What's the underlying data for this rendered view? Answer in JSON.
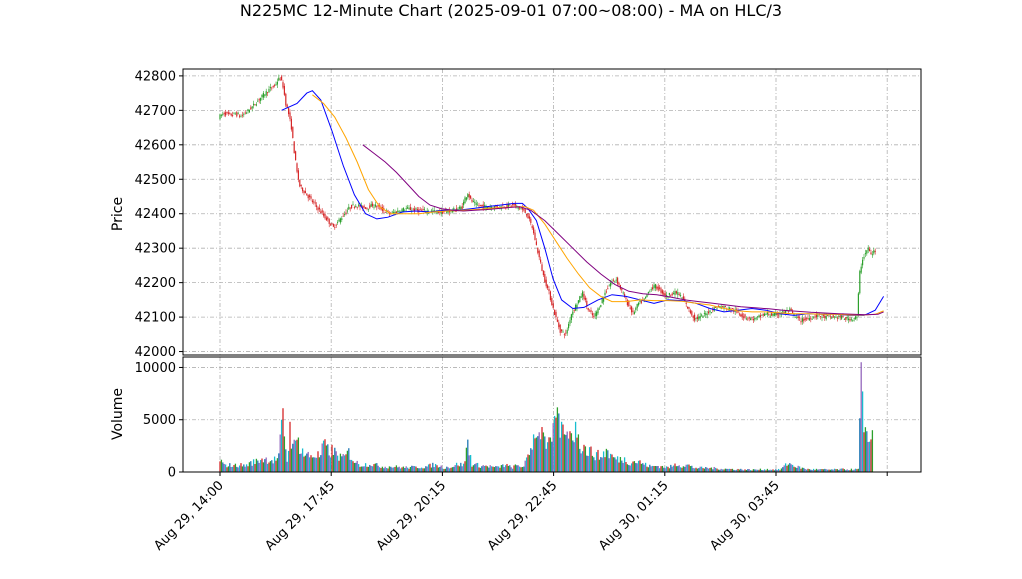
{
  "chart_data": {
    "type": "candlestick",
    "title": "N225MC 12-Minute Chart (2025-09-01 07:00~08:00) - MA on HLC/3",
    "price_panel": {
      "ylabel": "Price",
      "ylim": [
        41990,
        42820
      ],
      "yticks": [
        42000,
        42100,
        42200,
        42300,
        42400,
        42500,
        42600,
        42700,
        42800
      ],
      "grid": true
    },
    "volume_panel": {
      "ylabel": "Volume",
      "ylim": [
        0,
        11000
      ],
      "yticks": [
        0,
        5000,
        10000
      ],
      "grid": true
    },
    "x_axis": {
      "tick_labels": [
        "Aug 29, 14:00",
        "Aug 29, 17:45",
        "Aug 29, 20:15",
        "Aug 29, 22:45",
        "Aug 30, 01:15",
        "Aug 30, 03:45"
      ]
    },
    "up_color": "#2ca02c",
    "down_color": "#d62728",
    "volume_colors": [
      "#d62728",
      "#2ca02c",
      "#1f77b4",
      "#9467bd",
      "#17becf"
    ],
    "ma_lines": [
      {
        "color": "#0000ff",
        "points": [
          [
            44,
            42700
          ],
          [
            55,
            42720
          ],
          [
            62,
            42750
          ],
          [
            66,
            42757
          ],
          [
            72,
            42730
          ],
          [
            80,
            42640
          ],
          [
            88,
            42540
          ],
          [
            96,
            42455
          ],
          [
            104,
            42400
          ],
          [
            112,
            42385
          ],
          [
            120,
            42390
          ],
          [
            130,
            42405
          ],
          [
            140,
            42408
          ],
          [
            150,
            42405
          ],
          [
            160,
            42410
          ],
          [
            170,
            42410
          ],
          [
            180,
            42415
          ],
          [
            190,
            42420
          ],
          [
            200,
            42425
          ],
          [
            210,
            42430
          ],
          [
            216,
            42430
          ],
          [
            220,
            42415
          ],
          [
            226,
            42380
          ],
          [
            232,
            42300
          ],
          [
            238,
            42210
          ],
          [
            244,
            42150
          ],
          [
            252,
            42125
          ],
          [
            260,
            42128
          ],
          [
            270,
            42150
          ],
          [
            280,
            42165
          ],
          [
            290,
            42160
          ],
          [
            300,
            42150
          ],
          [
            310,
            42140
          ],
          [
            320,
            42150
          ],
          [
            330,
            42148
          ],
          [
            340,
            42140
          ],
          [
            350,
            42125
          ],
          [
            360,
            42115
          ],
          [
            370,
            42120
          ],
          [
            380,
            42125
          ],
          [
            390,
            42120
          ],
          [
            400,
            42110
          ],
          [
            410,
            42105
          ],
          [
            420,
            42110
          ],
          [
            430,
            42108
          ],
          [
            440,
            42108
          ],
          [
            450,
            42105
          ],
          [
            460,
            42105
          ],
          [
            468,
            42120
          ],
          [
            474,
            42160
          ]
        ]
      },
      {
        "color": "#ffa500",
        "points": [
          [
            66,
            42745
          ],
          [
            74,
            42720
          ],
          [
            82,
            42680
          ],
          [
            90,
            42620
          ],
          [
            98,
            42550
          ],
          [
            106,
            42470
          ],
          [
            114,
            42420
          ],
          [
            122,
            42400
          ],
          [
            132,
            42400
          ],
          [
            142,
            42400
          ],
          [
            152,
            42405
          ],
          [
            162,
            42408
          ],
          [
            172,
            42410
          ],
          [
            182,
            42412
          ],
          [
            192,
            42415
          ],
          [
            202,
            42418
          ],
          [
            212,
            42420
          ],
          [
            218,
            42420
          ],
          [
            224,
            42410
          ],
          [
            232,
            42370
          ],
          [
            240,
            42320
          ],
          [
            248,
            42270
          ],
          [
            256,
            42225
          ],
          [
            264,
            42185
          ],
          [
            272,
            42160
          ],
          [
            280,
            42145
          ],
          [
            290,
            42145
          ],
          [
            300,
            42150
          ],
          [
            310,
            42148
          ],
          [
            320,
            42148
          ],
          [
            330,
            42146
          ],
          [
            340,
            42140
          ],
          [
            350,
            42135
          ],
          [
            360,
            42125
          ],
          [
            370,
            42118
          ],
          [
            380,
            42115
          ],
          [
            390,
            42115
          ],
          [
            400,
            42112
          ],
          [
            410,
            42110
          ],
          [
            420,
            42110
          ],
          [
            430,
            42108
          ],
          [
            440,
            42108
          ],
          [
            450,
            42106
          ],
          [
            460,
            42106
          ],
          [
            468,
            42108
          ],
          [
            474,
            42118
          ]
        ]
      },
      {
        "color": "#800080",
        "points": [
          [
            102,
            42600
          ],
          [
            110,
            42575
          ],
          [
            118,
            42550
          ],
          [
            126,
            42520
          ],
          [
            134,
            42485
          ],
          [
            142,
            42450
          ],
          [
            150,
            42425
          ],
          [
            158,
            42415
          ],
          [
            166,
            42410
          ],
          [
            174,
            42408
          ],
          [
            182,
            42410
          ],
          [
            190,
            42412
          ],
          [
            198,
            42415
          ],
          [
            206,
            42418
          ],
          [
            214,
            42420
          ],
          [
            222,
            42410
          ],
          [
            232,
            42380
          ],
          [
            242,
            42340
          ],
          [
            252,
            42300
          ],
          [
            262,
            42260
          ],
          [
            272,
            42225
          ],
          [
            282,
            42195
          ],
          [
            292,
            42175
          ],
          [
            302,
            42168
          ],
          [
            312,
            42165
          ],
          [
            322,
            42158
          ],
          [
            332,
            42150
          ],
          [
            342,
            42145
          ],
          [
            352,
            42140
          ],
          [
            362,
            42135
          ],
          [
            372,
            42130
          ],
          [
            382,
            42127
          ],
          [
            392,
            42124
          ],
          [
            402,
            42120
          ],
          [
            412,
            42117
          ],
          [
            422,
            42114
          ],
          [
            432,
            42112
          ],
          [
            442,
            42110
          ],
          [
            452,
            42108
          ],
          [
            462,
            42107
          ],
          [
            470,
            42108
          ],
          [
            474,
            42115
          ]
        ]
      }
    ],
    "price_path": [
      [
        0,
        42680
      ],
      [
        4,
        42692
      ],
      [
        8,
        42686
      ],
      [
        12,
        42690
      ],
      [
        16,
        42682
      ],
      [
        20,
        42695
      ],
      [
        24,
        42710
      ],
      [
        28,
        42728
      ],
      [
        32,
        42745
      ],
      [
        36,
        42760
      ],
      [
        40,
        42772
      ],
      [
        42,
        42785
      ],
      [
        44,
        42795
      ],
      [
        46,
        42770
      ],
      [
        48,
        42720
      ],
      [
        50,
        42690
      ],
      [
        52,
        42650
      ],
      [
        54,
        42580
      ],
      [
        56,
        42520
      ],
      [
        58,
        42480
      ],
      [
        62,
        42460
      ],
      [
        66,
        42440
      ],
      [
        70,
        42420
      ],
      [
        74,
        42400
      ],
      [
        78,
        42380
      ],
      [
        82,
        42360
      ],
      [
        86,
        42380
      ],
      [
        90,
        42400
      ],
      [
        94,
        42420
      ],
      [
        98,
        42425
      ],
      [
        102,
        42420
      ],
      [
        106,
        42418
      ],
      [
        110,
        42425
      ],
      [
        114,
        42420
      ],
      [
        118,
        42410
      ],
      [
        122,
        42400
      ],
      [
        126,
        42405
      ],
      [
        130,
        42410
      ],
      [
        134,
        42415
      ],
      [
        138,
        42412
      ],
      [
        142,
        42410
      ],
      [
        150,
        42408
      ],
      [
        160,
        42405
      ],
      [
        170,
        42412
      ],
      [
        174,
        42420
      ],
      [
        176,
        42445
      ],
      [
        178,
        42460
      ],
      [
        180,
        42440
      ],
      [
        184,
        42425
      ],
      [
        190,
        42420
      ],
      [
        200,
        42420
      ],
      [
        210,
        42425
      ],
      [
        216,
        42415
      ],
      [
        220,
        42400
      ],
      [
        224,
        42360
      ],
      [
        228,
        42290
      ],
      [
        232,
        42220
      ],
      [
        236,
        42170
      ],
      [
        240,
        42110
      ],
      [
        244,
        42060
      ],
      [
        248,
        42050
      ],
      [
        252,
        42110
      ],
      [
        256,
        42140
      ],
      [
        260,
        42170
      ],
      [
        264,
        42120
      ],
      [
        268,
        42100
      ],
      [
        272,
        42130
      ],
      [
        276,
        42170
      ],
      [
        280,
        42200
      ],
      [
        284,
        42210
      ],
      [
        288,
        42175
      ],
      [
        292,
        42140
      ],
      [
        296,
        42110
      ],
      [
        300,
        42140
      ],
      [
        304,
        42150
      ],
      [
        308,
        42180
      ],
      [
        312,
        42190
      ],
      [
        316,
        42175
      ],
      [
        320,
        42160
      ],
      [
        324,
        42170
      ],
      [
        328,
        42170
      ],
      [
        332,
        42150
      ],
      [
        336,
        42120
      ],
      [
        340,
        42095
      ],
      [
        344,
        42100
      ],
      [
        348,
        42110
      ],
      [
        352,
        42120
      ],
      [
        356,
        42130
      ],
      [
        360,
        42130
      ],
      [
        364,
        42125
      ],
      [
        368,
        42120
      ],
      [
        372,
        42110
      ],
      [
        376,
        42100
      ],
      [
        380,
        42095
      ],
      [
        384,
        42095
      ],
      [
        388,
        42105
      ],
      [
        392,
        42110
      ],
      [
        396,
        42105
      ],
      [
        400,
        42110
      ],
      [
        404,
        42115
      ],
      [
        408,
        42120
      ],
      [
        412,
        42100
      ],
      [
        416,
        42090
      ],
      [
        420,
        42095
      ],
      [
        424,
        42100
      ],
      [
        428,
        42105
      ],
      [
        432,
        42100
      ],
      [
        436,
        42100
      ],
      [
        440,
        42100
      ],
      [
        444,
        42100
      ],
      [
        448,
        42095
      ],
      [
        452,
        42095
      ],
      [
        456,
        42100
      ],
      [
        458,
        42230
      ],
      [
        460,
        42270
      ],
      [
        462,
        42285
      ],
      [
        464,
        42300
      ],
      [
        466,
        42280
      ],
      [
        468,
        42290
      ]
    ],
    "volume_envelope": [
      [
        0,
        1400
      ],
      [
        3,
        700
      ],
      [
        6,
        800
      ],
      [
        10,
        700
      ],
      [
        14,
        800
      ],
      [
        18,
        700
      ],
      [
        22,
        1000
      ],
      [
        26,
        1200
      ],
      [
        30,
        1500
      ],
      [
        34,
        1400
      ],
      [
        38,
        1300
      ],
      [
        42,
        1600
      ],
      [
        44,
        5000
      ],
      [
        45,
        6100
      ],
      [
        48,
        1200
      ],
      [
        50,
        4800
      ],
      [
        52,
        2700
      ],
      [
        54,
        3000
      ],
      [
        56,
        3300
      ],
      [
        60,
        2000
      ],
      [
        64,
        1800
      ],
      [
        68,
        1900
      ],
      [
        72,
        1800
      ],
      [
        74,
        3000
      ],
      [
        78,
        2200
      ],
      [
        80,
        2400
      ],
      [
        84,
        1900
      ],
      [
        88,
        1500
      ],
      [
        92,
        2200
      ],
      [
        96,
        1200
      ],
      [
        100,
        800
      ],
      [
        108,
        900
      ],
      [
        116,
        600
      ],
      [
        124,
        600
      ],
      [
        132,
        500
      ],
      [
        140,
        550
      ],
      [
        148,
        600
      ],
      [
        152,
        800
      ],
      [
        156,
        700
      ],
      [
        160,
        500
      ],
      [
        166,
        600
      ],
      [
        170,
        900
      ],
      [
        174,
        750
      ],
      [
        177,
        3100
      ],
      [
        180,
        900
      ],
      [
        186,
        700
      ],
      [
        192,
        650
      ],
      [
        198,
        500
      ],
      [
        204,
        800
      ],
      [
        208,
        500
      ],
      [
        212,
        700
      ],
      [
        216,
        600
      ],
      [
        220,
        1500
      ],
      [
        222,
        2500
      ],
      [
        224,
        3600
      ],
      [
        226,
        3300
      ],
      [
        228,
        3800
      ],
      [
        230,
        4300
      ],
      [
        232,
        3400
      ],
      [
        236,
        3300
      ],
      [
        240,
        5200
      ],
      [
        242,
        5600
      ],
      [
        246,
        3600
      ],
      [
        250,
        3900
      ],
      [
        254,
        4800
      ],
      [
        256,
        3600
      ],
      [
        260,
        2600
      ],
      [
        264,
        2300
      ],
      [
        268,
        2000
      ],
      [
        272,
        1700
      ],
      [
        276,
        2400
      ],
      [
        280,
        1700
      ],
      [
        284,
        1400
      ],
      [
        288,
        1500
      ],
      [
        292,
        1100
      ],
      [
        296,
        1200
      ],
      [
        300,
        1100
      ],
      [
        304,
        800
      ],
      [
        308,
        600
      ],
      [
        312,
        700
      ],
      [
        316,
        600
      ],
      [
        320,
        500
      ],
      [
        324,
        700
      ],
      [
        326,
        900
      ],
      [
        330,
        700
      ],
      [
        334,
        800
      ],
      [
        338,
        500
      ],
      [
        342,
        450
      ],
      [
        350,
        450
      ],
      [
        360,
        350
      ],
      [
        370,
        300
      ],
      [
        380,
        250
      ],
      [
        390,
        300
      ],
      [
        400,
        250
      ],
      [
        406,
        1000
      ],
      [
        410,
        700
      ],
      [
        414,
        500
      ],
      [
        420,
        300
      ],
      [
        428,
        280
      ],
      [
        436,
        260
      ],
      [
        444,
        300
      ],
      [
        452,
        280
      ],
      [
        456,
        300
      ],
      [
        458,
        10500
      ],
      [
        460,
        3800
      ],
      [
        462,
        3900
      ],
      [
        464,
        2900
      ],
      [
        466,
        4000
      ]
    ]
  }
}
